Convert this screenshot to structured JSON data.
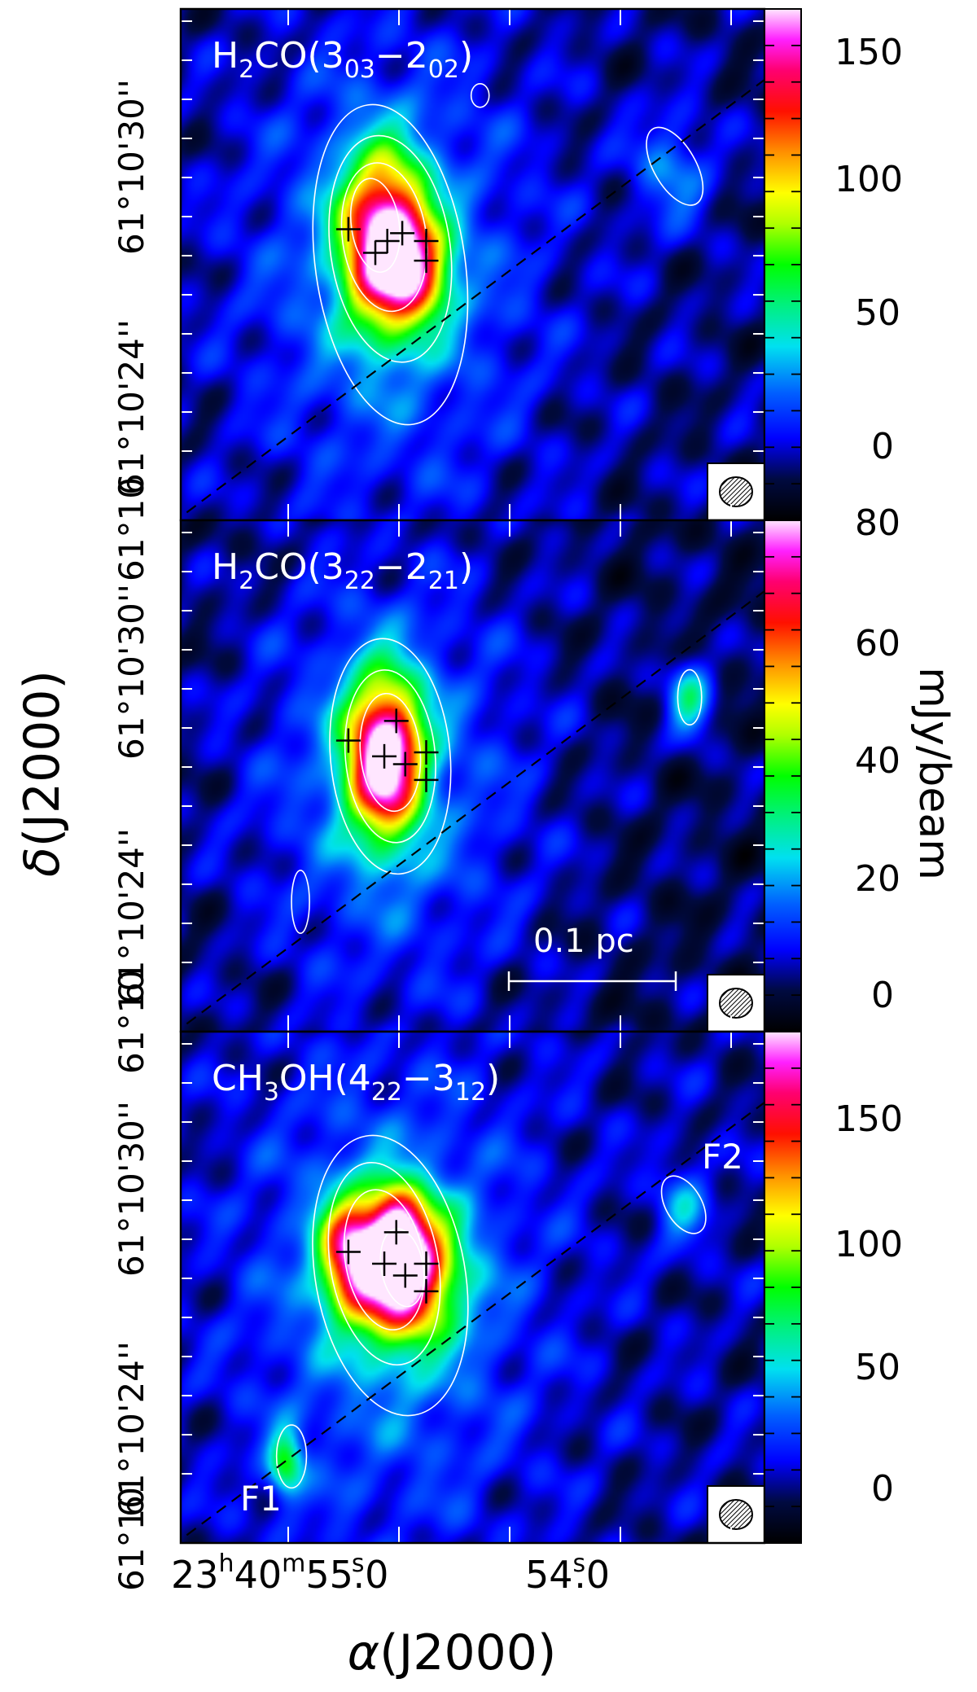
{
  "chart_data": [
    {
      "type": "heatmap",
      "panel_label": "H2CO(3_03-2_02)",
      "title": {
        "species": "H",
        "sub1": "2",
        "mid": "CO(3",
        "sub2": "03",
        "dash": "−2",
        "sub3": "02",
        "close": ")"
      },
      "colorbar": {
        "ticks": [
          0,
          50,
          100,
          150
        ],
        "bottom_label": "80",
        "range": [
          -20,
          165
        ]
      },
      "crosses": [
        {
          "ra": 54.75,
          "dec": 27.8
        },
        {
          "ra": 54.84,
          "dec": 28.4
        },
        {
          "ra": 54.71,
          "dec": 28.1
        },
        {
          "ra": 54.66,
          "dec": 28.3
        },
        {
          "ra": 54.58,
          "dec": 27.6
        },
        {
          "ra": 54.58,
          "dec": 28.1
        }
      ],
      "ellipses": [
        {
          "cx": 54.7,
          "cy": 27.5,
          "rx": 0.25,
          "ry": 4.1,
          "rot": -8
        },
        {
          "cx": 54.7,
          "cy": 27.9,
          "rx": 0.2,
          "ry": 2.9,
          "rot": -8
        },
        {
          "cx": 54.72,
          "cy": 28.2,
          "rx": 0.14,
          "ry": 1.9,
          "rot": -8
        },
        {
          "cx": 54.75,
          "cy": 28.5,
          "rx": 0.08,
          "ry": 1.2,
          "rot": -8
        }
      ],
      "blobs": [
        {
          "cx": 53.75,
          "cy": 30.0,
          "rx": 0.07,
          "ry": 1.1,
          "rot": -30
        },
        {
          "cx": 54.4,
          "cy": 31.8,
          "rx": 0.03,
          "ry": 0.3,
          "rot": 0
        }
      ],
      "peaks": [
        {
          "ra": 54.72,
          "dec": 28.1,
          "amp": 160,
          "sr": 0.1,
          "sd": 1.5
        },
        {
          "ra": 54.6,
          "dec": 27.3,
          "amp": 70,
          "sr": 0.08,
          "sd": 0.9
        },
        {
          "ra": 53.76,
          "dec": 29.9,
          "amp": 30,
          "sr": 0.09,
          "sd": 1.0
        }
      ]
    },
    {
      "type": "heatmap",
      "panel_label": "H2CO(3_22-2_21)",
      "title": {
        "species": "H",
        "sub1": "2",
        "mid": "CO(3",
        "sub2": "22",
        "dash": "−2",
        "sub3": "21",
        "close": ")"
      },
      "colorbar": {
        "ticks": [
          0,
          20,
          40,
          60
        ],
        "top_label": "80",
        "range": [
          -8,
          80
        ]
      },
      "scalebar": {
        "label": "0.1  pc"
      },
      "crosses": [
        {
          "ra": 54.68,
          "dec": 28.9
        },
        {
          "ra": 54.84,
          "dec": 28.4
        },
        {
          "ra": 54.72,
          "dec": 28.0
        },
        {
          "ra": 54.65,
          "dec": 27.8
        },
        {
          "ra": 54.58,
          "dec": 27.4
        },
        {
          "ra": 54.58,
          "dec": 28.1
        }
      ],
      "ellipses": [
        {
          "cx": 54.7,
          "cy": 28.0,
          "rx": 0.2,
          "ry": 3.0,
          "rot": -5
        },
        {
          "cx": 54.7,
          "cy": 28.0,
          "rx": 0.15,
          "ry": 2.2,
          "rot": -5
        },
        {
          "cx": 54.7,
          "cy": 28.1,
          "rx": 0.1,
          "ry": 1.5,
          "rot": -5
        }
      ],
      "blobs": [
        {
          "cx": 53.7,
          "cy": 29.5,
          "rx": 0.04,
          "ry": 0.7,
          "rot": 0
        },
        {
          "cx": 55.0,
          "cy": 24.3,
          "rx": 0.03,
          "ry": 0.8,
          "rot": 0
        }
      ],
      "peaks": [
        {
          "ra": 54.72,
          "dec": 28.0,
          "amp": 80,
          "sr": 0.09,
          "sd": 1.4
        },
        {
          "ra": 53.7,
          "dec": 29.5,
          "amp": 25,
          "sr": 0.05,
          "sd": 0.7
        }
      ]
    },
    {
      "type": "heatmap",
      "panel_label": "CH3OH(4_22-3_12)",
      "title": {
        "species": "CH",
        "sub1": "3",
        "mid": "OH(4",
        "sub2": "22",
        "dash": "−3",
        "sub3": "12",
        "close": ")"
      },
      "colorbar": {
        "ticks": [
          0,
          50,
          100,
          150
        ],
        "range": [
          -25,
          185
        ]
      },
      "labels": {
        "f1": "F1",
        "f2": "F2"
      },
      "crosses": [
        {
          "ra": 54.68,
          "dec": 28.9
        },
        {
          "ra": 54.84,
          "dec": 28.4
        },
        {
          "ra": 54.72,
          "dec": 28.1
        },
        {
          "ra": 54.65,
          "dec": 27.8
        },
        {
          "ra": 54.58,
          "dec": 27.4
        },
        {
          "ra": 54.58,
          "dec": 28.1
        }
      ],
      "ellipses": [
        {
          "cx": 54.7,
          "cy": 27.8,
          "rx": 0.25,
          "ry": 3.6,
          "rot": -10
        },
        {
          "cx": 54.72,
          "cy": 28.1,
          "rx": 0.18,
          "ry": 2.6,
          "rot": -10
        },
        {
          "cx": 54.72,
          "cy": 28.2,
          "rx": 0.13,
          "ry": 1.8,
          "rot": -10
        },
        {
          "cx": 54.66,
          "cy": 28.0,
          "rx": 0.07,
          "ry": 1.0,
          "rot": -10
        }
      ],
      "blobs": [
        {
          "cx": 53.72,
          "cy": 29.6,
          "rx": 0.06,
          "ry": 0.8,
          "rot": -30
        },
        {
          "cx": 55.03,
          "cy": 23.2,
          "rx": 0.05,
          "ry": 0.8,
          "rot": 0
        }
      ],
      "peaks": [
        {
          "ra": 54.66,
          "dec": 27.9,
          "amp": 180,
          "sr": 0.12,
          "sd": 1.2
        },
        {
          "ra": 54.84,
          "dec": 28.4,
          "amp": 110,
          "sr": 0.07,
          "sd": 1.0
        },
        {
          "ra": 54.68,
          "dec": 28.9,
          "amp": 100,
          "sr": 0.06,
          "sd": 0.8
        },
        {
          "ra": 55.05,
          "dec": 23.0,
          "amp": 70,
          "sr": 0.04,
          "sd": 0.6
        },
        {
          "ra": 53.72,
          "dec": 29.6,
          "amp": 35,
          "sr": 0.06,
          "sd": 0.8
        }
      ]
    }
  ],
  "axes": {
    "y_label_delta": "δ",
    "y_label_rest": "(J2000)",
    "x_label_alpha": "α",
    "x_label_rest": "(J2000)",
    "y_ticks": [
      {
        "value": 30,
        "label": "61°10'30''"
      },
      {
        "value": 24,
        "label": "61°10'24''"
      },
      {
        "value": 21.6,
        "label": "61°10"
      }
    ],
    "x_tick_main": {
      "h": "23",
      "hsup": "h",
      "m": "40",
      "msup": "m",
      "s": "55",
      "ssup": "s",
      "dec": ".0"
    },
    "x_tick_second": {
      "s": "54",
      "ssup": "s",
      "dec": ".0"
    },
    "ra_range": [
      55.4,
      53.45
    ],
    "dec_range": [
      21.0,
      34.0
    ],
    "cbar_unit": "mJy/beam",
    "outflow_axis": {
      "ra1": 55.38,
      "dec1": 21.2,
      "ra2": 53.45,
      "dec2": 32.2
    }
  }
}
